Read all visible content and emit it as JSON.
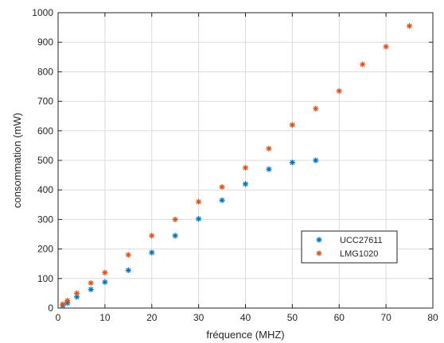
{
  "chart_data": {
    "type": "scatter",
    "title": "",
    "xlabel": "fréquence (MHZ)",
    "ylabel": "consommation (mW)",
    "xlim": [
      0,
      80
    ],
    "ylim": [
      0,
      1000
    ],
    "xticks": [
      0,
      10,
      20,
      30,
      40,
      50,
      60,
      70,
      80
    ],
    "yticks": [
      0,
      100,
      200,
      300,
      400,
      500,
      600,
      700,
      800,
      900,
      1000
    ],
    "grid": true,
    "legend_position": "lower-right",
    "marker": "asterisk",
    "series": [
      {
        "name": "UCC27611",
        "color": "#0072BD",
        "x": [
          1,
          2,
          4,
          7,
          10,
          15,
          20,
          25,
          30,
          35,
          40,
          45,
          50,
          55
        ],
        "y": [
          8,
          17,
          38,
          63,
          88,
          128,
          188,
          245,
          302,
          365,
          420,
          470,
          493,
          500
        ]
      },
      {
        "name": "LMG1020",
        "color": "#D95319",
        "x": [
          1,
          2,
          4,
          7,
          10,
          15,
          20,
          25,
          30,
          35,
          40,
          45,
          50,
          55,
          60,
          65,
          70,
          75
        ],
        "y": [
          13,
          25,
          50,
          85,
          120,
          180,
          245,
          300,
          360,
          410,
          475,
          540,
          620,
          675,
          735,
          825,
          885,
          955
        ]
      }
    ]
  }
}
